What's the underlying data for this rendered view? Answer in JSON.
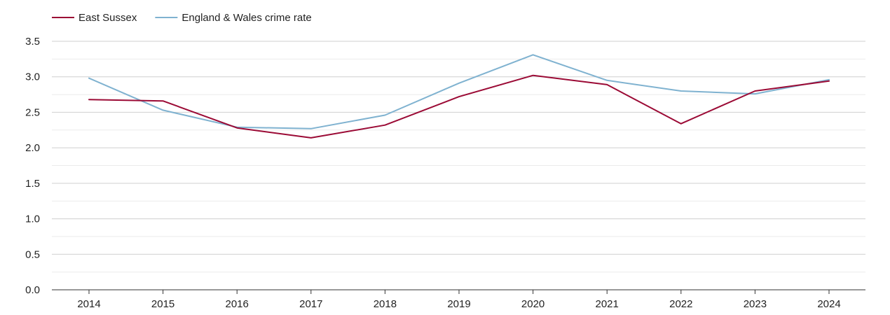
{
  "chart_data": {
    "type": "line",
    "title": "",
    "xlabel": "",
    "ylabel": "",
    "categories": [
      "2014",
      "2015",
      "2016",
      "2017",
      "2018",
      "2019",
      "2020",
      "2021",
      "2022",
      "2023",
      "2024"
    ],
    "ylim": [
      0,
      3.5
    ],
    "yticks": [
      "0.0",
      "0.5",
      "1.0",
      "1.5",
      "2.0",
      "2.5",
      "3.0",
      "3.5"
    ],
    "grid": true,
    "legend_position": "top-left",
    "series": [
      {
        "name": "East Sussex",
        "color": "#9b0a35",
        "values": [
          2.68,
          2.66,
          2.28,
          2.14,
          2.32,
          2.72,
          3.02,
          2.89,
          2.34,
          2.8,
          2.94
        ]
      },
      {
        "name": "England & Wales crime rate",
        "color": "#7fb2d0",
        "values": [
          2.98,
          2.53,
          2.29,
          2.27,
          2.46,
          2.91,
          3.31,
          2.95,
          2.8,
          2.76,
          2.96
        ]
      }
    ]
  }
}
